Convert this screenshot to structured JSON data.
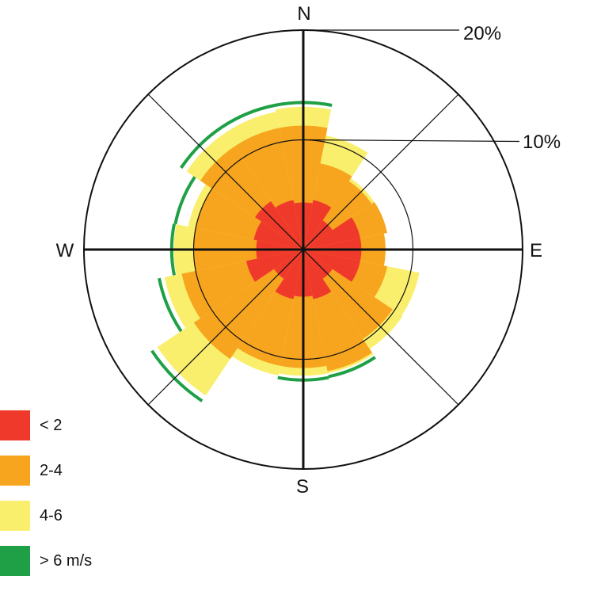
{
  "chart_data": {
    "type": "wind-rose",
    "directions_labels": {
      "north": "N",
      "east": "E",
      "south": "S",
      "west": "W"
    },
    "ring_labels": [
      "10%",
      "20%"
    ],
    "radial_max": 20,
    "sector_count": 16,
    "sector_directions": [
      "N",
      "NNE",
      "NE",
      "ENE",
      "E",
      "ESE",
      "SE",
      "SSE",
      "S",
      "SSW",
      "SW",
      "WSW",
      "W",
      "WNW",
      "NW",
      "NNW"
    ],
    "series": [
      {
        "name": "< 2",
        "color": "#ef3a2b",
        "values": [
          4.3,
          4.6,
          3.2,
          5.3,
          5.3,
          5.3,
          3.2,
          4.6,
          4.3,
          4.6,
          3.2,
          5.3,
          4.3,
          4.6,
          5.3,
          4.6
        ]
      },
      {
        "name": "2-4",
        "color": "#f7a51f",
        "values": [
          11.3,
          8.0,
          7.5,
          7.8,
          7.5,
          7.8,
          9.8,
          11.3,
          10.8,
          10.8,
          12.0,
          11.3,
          10.0,
          10.0,
          11.3,
          11.3
        ]
      },
      {
        "name": "4-6",
        "color": "#f9ef6c",
        "values": [
          13.0,
          10.6,
          7.8,
          7.5,
          7.5,
          10.8,
          10.9,
          11.5,
          11.5,
          11.7,
          16.0,
          12.9,
          11.8,
          10.7,
          12.8,
          12.8
        ]
      },
      {
        "name": "> 6 m/s",
        "color": "#1fa046",
        "values": [
          13.4,
          0,
          0,
          0,
          0,
          0,
          0,
          11.8,
          11.9,
          0,
          16.6,
          13.4,
          12.0,
          11.9,
          13.4,
          13.4
        ]
      }
    ],
    "legend_position": "bottom-left"
  },
  "legend": {
    "items": [
      {
        "label": "< 2",
        "color": "#ef3a2b"
      },
      {
        "label": "2-4",
        "color": "#f7a51f"
      },
      {
        "label": "4-6",
        "color": "#f9ef6c"
      },
      {
        "label": "> 6 m/s",
        "color": "#1fa046"
      }
    ]
  }
}
